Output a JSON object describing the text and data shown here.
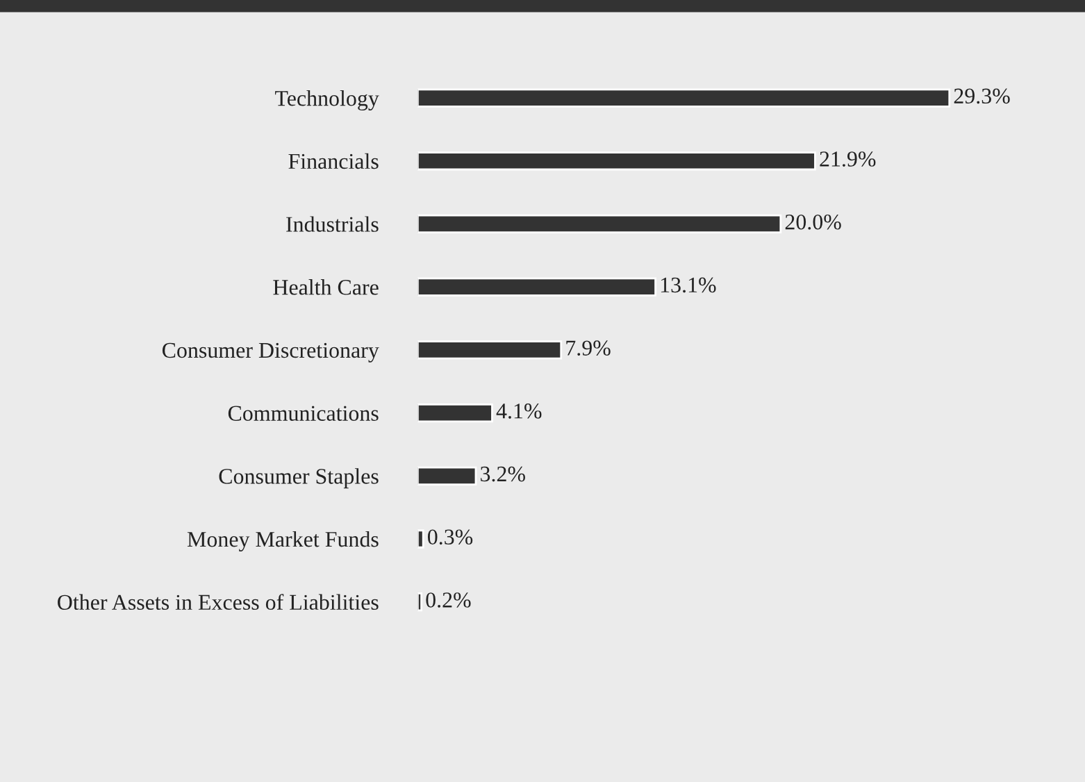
{
  "chart_data": {
    "type": "bar",
    "orientation": "horizontal",
    "categories": [
      "Technology",
      "Financials",
      "Industrials",
      "Health Care",
      "Consumer Discretionary",
      "Communications",
      "Consumer Staples",
      "Money Market Funds",
      "Other Assets in Excess of Liabilities"
    ],
    "values": [
      29.3,
      21.9,
      20.0,
      13.1,
      7.9,
      4.1,
      3.2,
      0.3,
      0.2
    ],
    "value_labels": [
      "29.3%",
      "21.9%",
      "20.0%",
      "13.1%",
      "7.9%",
      "4.1%",
      "3.2%",
      "0.3%",
      "0.2%"
    ],
    "color": "#333333",
    "grid": false,
    "legend": false
  }
}
